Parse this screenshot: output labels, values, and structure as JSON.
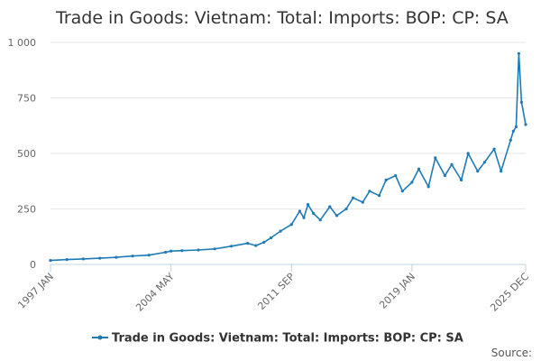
{
  "chart_data": {
    "type": "line",
    "title": "Trade in Goods: Vietnam: Total: Imports: BOP: CP: SA",
    "xlabel": "",
    "ylabel": "",
    "ylim": [
      0,
      1000
    ],
    "yticks": [
      0,
      250,
      500,
      750,
      1000
    ],
    "ytick_labels": [
      "0",
      "250",
      "500",
      "750",
      "1 000"
    ],
    "xlim": [
      "1997-01",
      "2025-12"
    ],
    "xticks": [
      "1997-01",
      "2004-05",
      "2011-09",
      "2019-01",
      "2025-12"
    ],
    "xtick_labels": [
      "1997 JAN",
      "2004 MAY",
      "2011 SEP",
      "2019 JAN",
      "2025 DEC"
    ],
    "grid": true,
    "legend_position": "bottom",
    "series": [
      {
        "name": "Trade in Goods: Vietnam: Total: Imports: BOP: CP: SA",
        "color": "#1f7bb6",
        "x": [
          "1997-01",
          "1998-01",
          "1999-01",
          "2000-01",
          "2001-01",
          "2002-01",
          "2003-01",
          "2004-01",
          "2004-05",
          "2005-01",
          "2006-01",
          "2007-01",
          "2008-01",
          "2009-01",
          "2009-07",
          "2010-01",
          "2010-06",
          "2011-01",
          "2011-09",
          "2012-03",
          "2012-06",
          "2012-09",
          "2013-01",
          "2013-06",
          "2014-01",
          "2014-06",
          "2015-01",
          "2015-06",
          "2016-01",
          "2016-06",
          "2017-01",
          "2017-06",
          "2018-01",
          "2018-06",
          "2019-01",
          "2019-06",
          "2020-01",
          "2020-06",
          "2021-01",
          "2021-06",
          "2022-01",
          "2022-06",
          "2023-01",
          "2023-06",
          "2024-01",
          "2024-06",
          "2025-01",
          "2025-03",
          "2025-05",
          "2025-07",
          "2025-09",
          "2025-12"
        ],
        "values": [
          18,
          22,
          25,
          28,
          32,
          38,
          42,
          55,
          60,
          62,
          65,
          70,
          82,
          95,
          85,
          100,
          120,
          150,
          180,
          240,
          210,
          270,
          230,
          200,
          260,
          220,
          250,
          300,
          280,
          330,
          310,
          380,
          400,
          330,
          370,
          430,
          350,
          480,
          400,
          450,
          380,
          500,
          420,
          460,
          520,
          420,
          560,
          600,
          620,
          950,
          730,
          630
        ]
      }
    ]
  },
  "legend": {
    "label": "Trade in Goods: Vietnam: Total: Imports: BOP: CP: SA"
  },
  "footer": {
    "source": "Source:"
  }
}
